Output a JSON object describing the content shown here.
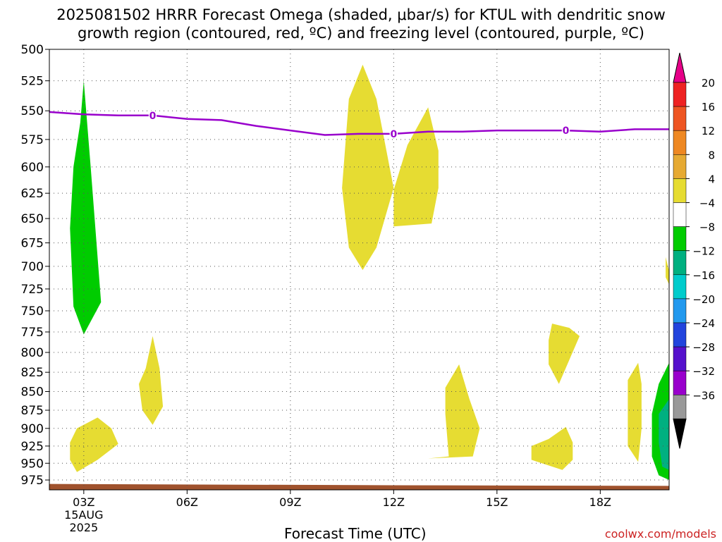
{
  "title": {
    "line1": "2025081502 HRRR Forecast Omega (shaded, μbar/s) for KTUL with dendritic snow",
    "line2": "growth region (contoured, red, ºC) and freezing level (contoured, purple, ºC)"
  },
  "credit": "coolwx.com/models",
  "chart_data": {
    "type": "contour-time-height",
    "xlabel": "Forecast Time (UTC)",
    "ylabel": "",
    "x_ticks": [
      "03Z",
      "06Z",
      "09Z",
      "12Z",
      "15Z",
      "18Z"
    ],
    "x_tick_hours": [
      3,
      6,
      9,
      12,
      15,
      18
    ],
    "x_date_label": [
      "15AUG",
      "2025"
    ],
    "xlim": [
      2,
      20
    ],
    "y_ticks": [
      500,
      525,
      550,
      575,
      600,
      625,
      650,
      675,
      700,
      725,
      750,
      775,
      800,
      825,
      850,
      875,
      900,
      925,
      950,
      975
    ],
    "ylim": [
      500,
      990
    ],
    "y_scale": "log-pressure",
    "grid": true,
    "freezing_level": {
      "label": "0",
      "color": "#9900cc",
      "points": [
        [
          2,
          551
        ],
        [
          3,
          553
        ],
        [
          4,
          554
        ],
        [
          5,
          554
        ],
        [
          6,
          557
        ],
        [
          7,
          558
        ],
        [
          8,
          563
        ],
        [
          9,
          567
        ],
        [
          10,
          571
        ],
        [
          11,
          570
        ],
        [
          12,
          570
        ],
        [
          13,
          568
        ],
        [
          14,
          568
        ],
        [
          15,
          567
        ],
        [
          16,
          567
        ],
        [
          17,
          567
        ],
        [
          18,
          568
        ],
        [
          19,
          566
        ],
        [
          20,
          566
        ]
      ],
      "label_hours": [
        5,
        12,
        17
      ]
    },
    "omega_regions": [
      {
        "level": "-8 to -4",
        "color": "#00cc00",
        "points": [
          [
            3.0,
            525
          ],
          [
            3.2,
            600
          ],
          [
            3.5,
            740
          ],
          [
            3.0,
            778
          ],
          [
            2.7,
            745
          ],
          [
            2.6,
            660
          ],
          [
            2.7,
            600
          ],
          [
            2.9,
            560
          ]
        ]
      },
      {
        "level": "4 to 8",
        "color": "#e6dc32",
        "points": [
          [
            3.4,
            885
          ],
          [
            3.8,
            900
          ],
          [
            4.0,
            922
          ],
          [
            3.4,
            945
          ],
          [
            2.8,
            963
          ],
          [
            2.6,
            945
          ],
          [
            2.6,
            920
          ],
          [
            2.8,
            900
          ]
        ]
      },
      {
        "level": "4 to 8",
        "color": "#e6dc32",
        "points": [
          [
            5.0,
            780
          ],
          [
            5.2,
            820
          ],
          [
            5.3,
            870
          ],
          [
            5.0,
            895
          ],
          [
            4.7,
            875
          ],
          [
            4.6,
            840
          ],
          [
            4.8,
            820
          ]
        ]
      },
      {
        "level": "4 to 8",
        "color": "#e6dc32",
        "points": [
          [
            11.1,
            512
          ],
          [
            11.5,
            540
          ],
          [
            12.0,
            620
          ],
          [
            11.5,
            680
          ],
          [
            11.1,
            704
          ],
          [
            10.7,
            680
          ],
          [
            10.5,
            620
          ],
          [
            10.7,
            540
          ]
        ]
      },
      {
        "level": "4 to 8",
        "color": "#e6dc32",
        "points": [
          [
            13.0,
            547
          ],
          [
            13.3,
            585
          ],
          [
            13.3,
            620
          ],
          [
            13.1,
            655
          ],
          [
            12.0,
            658
          ],
          [
            12.0,
            622
          ],
          [
            12.4,
            580
          ]
        ]
      },
      {
        "level": "4 to 8",
        "color": "#e6dc32",
        "points": [
          [
            13.9,
            815
          ],
          [
            14.2,
            860
          ],
          [
            14.5,
            900
          ],
          [
            14.3,
            940
          ],
          [
            13.0,
            943
          ],
          [
            13.6,
            940
          ],
          [
            13.5,
            880
          ],
          [
            13.5,
            845
          ]
        ]
      },
      {
        "level": "4 to 8",
        "color": "#e6dc32",
        "points": [
          [
            16.6,
            765
          ],
          [
            16.5,
            785
          ],
          [
            16.5,
            815
          ],
          [
            16.8,
            840
          ],
          [
            17.4,
            780
          ],
          [
            17.1,
            770
          ]
        ]
      },
      {
        "level": "4 to 8",
        "color": "#e6dc32",
        "points": [
          [
            17.0,
            898
          ],
          [
            17.2,
            920
          ],
          [
            17.2,
            945
          ],
          [
            16.9,
            960
          ],
          [
            16.0,
            945
          ],
          [
            16.0,
            925
          ],
          [
            16.5,
            915
          ]
        ]
      },
      {
        "level": "4 to 8",
        "color": "#e6dc32",
        "points": [
          [
            19.1,
            813
          ],
          [
            19.2,
            840
          ],
          [
            19.2,
            900
          ],
          [
            19.1,
            948
          ],
          [
            18.8,
            925
          ],
          [
            18.8,
            880
          ],
          [
            18.8,
            835
          ]
        ]
      },
      {
        "level": "4 to 8",
        "color": "#e6dc32",
        "points": [
          [
            19.9,
            690
          ],
          [
            20.0,
            705
          ],
          [
            20.0,
            720
          ],
          [
            19.9,
            712
          ]
        ]
      },
      {
        "level": "-8 to -4",
        "color": "#00cc00",
        "points": [
          [
            20.0,
            813
          ],
          [
            20.0,
            975
          ],
          [
            19.7,
            968
          ],
          [
            19.5,
            940
          ],
          [
            19.5,
            880
          ],
          [
            19.7,
            840
          ]
        ]
      },
      {
        "level": "-12 to -8",
        "color": "#00b080",
        "points": [
          [
            20.0,
            860
          ],
          [
            20.0,
            960
          ],
          [
            19.8,
            955
          ],
          [
            19.7,
            920
          ],
          [
            19.7,
            880
          ]
        ]
      }
    ],
    "ground": {
      "color": "#a0522d",
      "points": [
        [
          2,
          981
        ],
        [
          12,
          983
        ],
        [
          20,
          984
        ]
      ]
    },
    "colorbar": {
      "labels": [
        "20",
        "16",
        "12",
        "8",
        "4",
        "−4",
        "−8",
        "−12",
        "−16",
        "−20",
        "−24",
        "−28",
        "−32",
        "−36"
      ],
      "colors": [
        "#ee2222",
        "#ee5522",
        "#ee8822",
        "#e6aa33",
        "#e6dc32",
        "#ffffff",
        "#00cc00",
        "#00b080",
        "#00cccc",
        "#2299ee",
        "#2244dd",
        "#5511cc",
        "#9900cc",
        "#999999"
      ],
      "top_color": "#e60088",
      "bottom_color": "#000000"
    }
  }
}
